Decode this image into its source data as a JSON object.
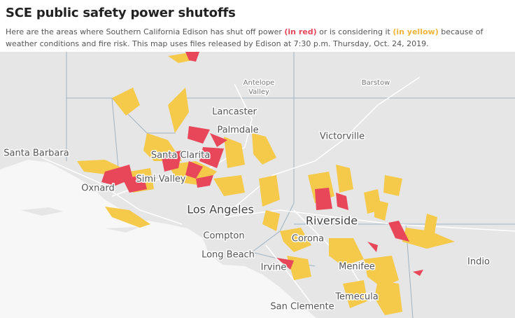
{
  "header": {
    "title": "SCE public safety power shutoffs",
    "subtitle": {
      "before": "Here are the areas where Southern California Edison has shut off power ",
      "red": "(in red)",
      "middle": " or is considering it ",
      "yellow": "(in yellow)",
      "after": " because of weather conditions and fire risk. This map uses files released by Edison at 7:30 p.m. Thursday, Oct. 24, 2019."
    }
  },
  "map": {
    "labels": [
      "Antelope",
      "Valley",
      "Barstow",
      "Lancaster",
      "Palmdale",
      "Victorville",
      "Santa Barbara",
      "Santa Clarita",
      "Simi Valley",
      "Oxnard",
      "Los Angeles",
      "Riverside",
      "Compton",
      "Corona",
      "Long Beach",
      "Irvine",
      "Menifee",
      "Temecula",
      "Indio",
      "San Clemente"
    ]
  }
}
